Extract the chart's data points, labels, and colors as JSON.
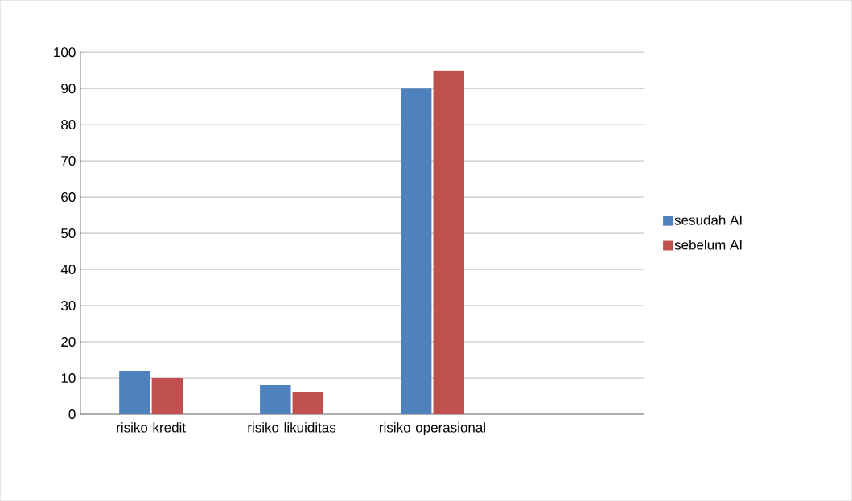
{
  "chart_data": {
    "type": "bar",
    "categories": [
      "risiko kredit",
      "risiko likuiditas",
      "risiko operasional",
      null
    ],
    "series": [
      {
        "name": "sesudah AI",
        "color": "#4f81bd",
        "values": [
          12,
          8,
          90,
          null
        ]
      },
      {
        "name": "sebelum AI",
        "color": "#c0504d",
        "values": [
          10,
          6,
          95,
          null
        ]
      }
    ],
    "ylim": [
      0,
      100
    ],
    "yticks": [
      0,
      10,
      20,
      30,
      40,
      50,
      60,
      70,
      80,
      90,
      100
    ],
    "grid": "y",
    "legend": "right"
  }
}
